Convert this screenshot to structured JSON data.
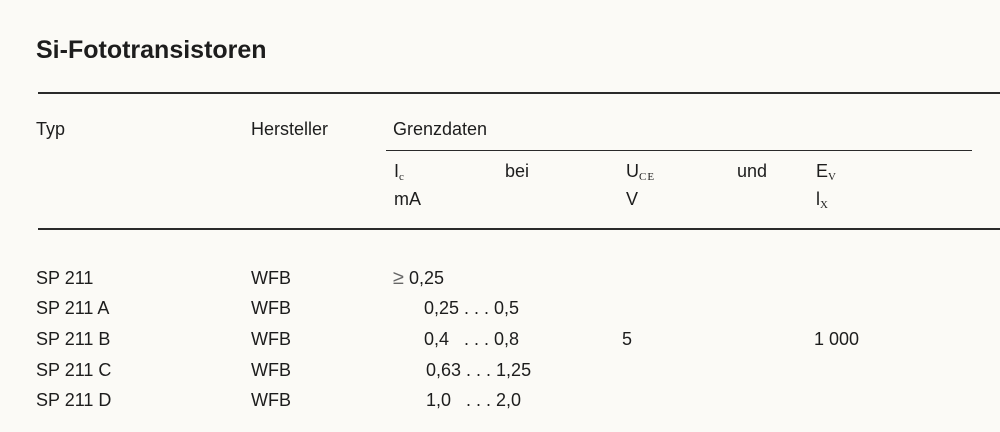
{
  "title": "Si-Fototransistoren",
  "headers": {
    "typ": "Typ",
    "hersteller": "Hersteller",
    "grenzdaten": "Grenzdaten",
    "ic": "I",
    "ic_sub": "c",
    "ic_unit": "mA",
    "bei": "bei",
    "uce": "U",
    "uce_sub": "CE",
    "uce_unit": "V",
    "und": "und",
    "ev": "E",
    "ev_sub": "V",
    "ev_unit": "l",
    "ev_unit_sub": "X"
  },
  "rows": [
    {
      "typ": "SP 211",
      "hersteller": "WFB",
      "ic_prefix": "≥",
      "ic": "0,25"
    },
    {
      "typ": "SP 211 A",
      "hersteller": "WFB",
      "ic": "0,25 . . . 0,5"
    },
    {
      "typ": "SP 211 B",
      "hersteller": "WFB",
      "ic": "0,4   . . . 0,8"
    },
    {
      "typ": "SP 211 C",
      "hersteller": "WFB",
      "ic": "0,63 . . . 1,25"
    },
    {
      "typ": "SP 211 D",
      "hersteller": "WFB",
      "ic": "1,0   . . . 2,0"
    }
  ],
  "shared": {
    "uce": "5",
    "ev": "1 000"
  }
}
